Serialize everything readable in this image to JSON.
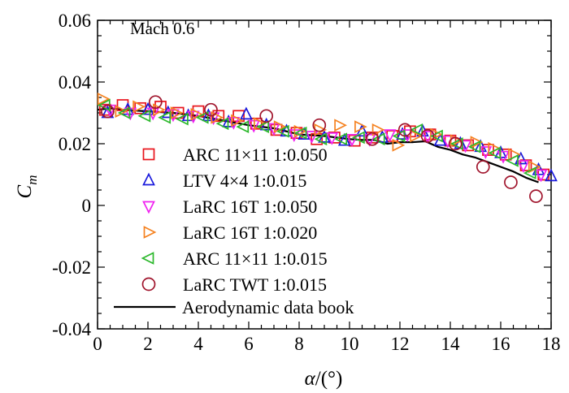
{
  "chart_data": {
    "type": "scatter",
    "title": "",
    "annotation": "Mach 0.6",
    "xlabel": {
      "symbol": "α",
      "unit": "/(°)"
    },
    "ylabel": {
      "symbol": "C",
      "subscript": "m"
    },
    "xlim": [
      0,
      18
    ],
    "ylim": [
      -0.04,
      0.06
    ],
    "xticks": [
      0,
      2,
      4,
      6,
      8,
      10,
      12,
      14,
      16,
      18
    ],
    "yticks": [
      -0.04,
      -0.02,
      0,
      0.02,
      0.04,
      0.06
    ],
    "ytick_labels": [
      "-0.04",
      "-0.02",
      "0",
      "0.02",
      "0.04",
      "0.06"
    ],
    "grid": false,
    "legend_position": "lower-left",
    "series": [
      {
        "name": "ARC 11×11 1:0.050",
        "marker": "square",
        "color": "#e8141c",
        "points": [
          [
            0.3,
            0.031
          ],
          [
            1.0,
            0.0325
          ],
          [
            1.7,
            0.0315
          ],
          [
            2.5,
            0.032
          ],
          [
            3.2,
            0.03
          ],
          [
            4.0,
            0.0305
          ],
          [
            4.8,
            0.029
          ],
          [
            5.6,
            0.029
          ],
          [
            6.3,
            0.0265
          ],
          [
            7.1,
            0.0245
          ],
          [
            7.9,
            0.0235
          ],
          [
            8.7,
            0.0215
          ],
          [
            9.4,
            0.022
          ],
          [
            10.2,
            0.021
          ],
          [
            10.9,
            0.022
          ],
          [
            11.7,
            0.0225
          ],
          [
            12.4,
            0.024
          ],
          [
            13.2,
            0.023
          ],
          [
            14.0,
            0.021
          ],
          [
            14.7,
            0.0195
          ],
          [
            15.5,
            0.018
          ],
          [
            16.2,
            0.0165
          ],
          [
            17.0,
            0.013
          ],
          [
            17.7,
            0.01
          ]
        ]
      },
      {
        "name": "LTV 4×4 1:0.015",
        "marker": "triangle-up",
        "color": "#1a1adc",
        "points": [
          [
            0.4,
            0.03
          ],
          [
            1.2,
            0.031
          ],
          [
            2.0,
            0.031
          ],
          [
            2.8,
            0.03
          ],
          [
            3.6,
            0.029
          ],
          [
            4.4,
            0.029
          ],
          [
            5.2,
            0.027
          ],
          [
            5.9,
            0.0295
          ],
          [
            6.7,
            0.026
          ],
          [
            7.5,
            0.024
          ],
          [
            8.2,
            0.023
          ],
          [
            9.0,
            0.022
          ],
          [
            9.8,
            0.021
          ],
          [
            10.5,
            0.024
          ],
          [
            11.3,
            0.022
          ],
          [
            12.1,
            0.023
          ],
          [
            12.9,
            0.024
          ],
          [
            13.6,
            0.021
          ],
          [
            14.4,
            0.02
          ],
          [
            15.2,
            0.019
          ],
          [
            16.0,
            0.017
          ],
          [
            16.8,
            0.015
          ],
          [
            17.5,
            0.0115
          ],
          [
            18.0,
            0.0095
          ]
        ]
      },
      {
        "name": "LaRC 16T 1:0.050",
        "marker": "triangle-down",
        "color": "#f020f0",
        "points": [
          [
            0.5,
            0.031
          ],
          [
            1.3,
            0.03
          ],
          [
            2.2,
            0.03
          ],
          [
            3.0,
            0.0295
          ],
          [
            3.8,
            0.029
          ],
          [
            4.6,
            0.0285
          ],
          [
            5.4,
            0.027
          ],
          [
            6.2,
            0.026
          ],
          [
            7.0,
            0.025
          ],
          [
            7.8,
            0.023
          ],
          [
            8.5,
            0.0225
          ],
          [
            9.3,
            0.022
          ],
          [
            10.1,
            0.0215
          ],
          [
            10.8,
            0.0215
          ],
          [
            11.6,
            0.023
          ],
          [
            12.3,
            0.023
          ],
          [
            13.1,
            0.0225
          ],
          [
            13.9,
            0.021
          ],
          [
            14.6,
            0.0195
          ],
          [
            15.4,
            0.0175
          ],
          [
            16.1,
            0.016
          ],
          [
            16.9,
            0.013
          ],
          [
            17.6,
            0.01
          ]
        ]
      },
      {
        "name": "LaRC 16T 1:0.020",
        "marker": "triangle-right",
        "color": "#f58220",
        "points": [
          [
            0.2,
            0.0345
          ],
          [
            0.9,
            0.0305
          ],
          [
            1.6,
            0.032
          ],
          [
            2.4,
            0.031
          ],
          [
            3.1,
            0.03
          ],
          [
            3.9,
            0.0295
          ],
          [
            4.7,
            0.0285
          ],
          [
            5.5,
            0.0275
          ],
          [
            6.4,
            0.0265
          ],
          [
            7.2,
            0.0255
          ],
          [
            8.0,
            0.024
          ],
          [
            8.8,
            0.0245
          ],
          [
            9.6,
            0.026
          ],
          [
            10.4,
            0.0255
          ],
          [
            11.1,
            0.0245
          ],
          [
            11.9,
            0.0195
          ],
          [
            12.6,
            0.0225
          ],
          [
            13.4,
            0.023
          ],
          [
            14.2,
            0.021
          ],
          [
            15.0,
            0.0205
          ],
          [
            15.7,
            0.0185
          ],
          [
            16.5,
            0.0165
          ],
          [
            17.3,
            0.0125
          ]
        ]
      },
      {
        "name": "ARC 11×11 1:0.015",
        "marker": "triangle-left",
        "color": "#2cb82c",
        "points": [
          [
            0.3,
            0.0325
          ],
          [
            1.1,
            0.03
          ],
          [
            1.9,
            0.029
          ],
          [
            2.7,
            0.0285
          ],
          [
            3.4,
            0.028
          ],
          [
            4.2,
            0.0285
          ],
          [
            5.0,
            0.0265
          ],
          [
            5.8,
            0.0255
          ],
          [
            6.6,
            0.0255
          ],
          [
            7.4,
            0.024
          ],
          [
            8.1,
            0.0235
          ],
          [
            8.9,
            0.0215
          ],
          [
            9.7,
            0.0215
          ],
          [
            10.4,
            0.022
          ],
          [
            11.2,
            0.0215
          ],
          [
            12.0,
            0.0225
          ],
          [
            12.7,
            0.0245
          ],
          [
            13.5,
            0.0225
          ],
          [
            14.3,
            0.02
          ],
          [
            15.0,
            0.019
          ],
          [
            15.8,
            0.017
          ],
          [
            16.5,
            0.0145
          ],
          [
            17.2,
            0.0105
          ]
        ]
      },
      {
        "name": "LaRC TWT 1:0.015",
        "marker": "circle",
        "color": "#a0142c",
        "points": [
          [
            0.4,
            0.0305
          ],
          [
            2.3,
            0.0335
          ],
          [
            4.5,
            0.031
          ],
          [
            6.7,
            0.029
          ],
          [
            8.8,
            0.026
          ],
          [
            10.9,
            0.0215
          ],
          [
            12.2,
            0.0245
          ],
          [
            13.1,
            0.0225
          ],
          [
            14.2,
            0.02
          ],
          [
            15.3,
            0.0125
          ],
          [
            16.4,
            0.0075
          ],
          [
            17.4,
            0.003
          ]
        ]
      }
    ],
    "line": {
      "name": "Aerodynamic data book",
      "color": "#000000",
      "x": [
        0.0,
        0.5,
        1.0,
        2.0,
        3.0,
        4.0,
        5.0,
        6.0,
        7.0,
        8.0,
        9.0,
        10.0,
        10.5,
        11.0,
        11.5,
        12.0,
        12.5,
        13.0,
        13.5,
        14.0,
        14.5,
        15.0,
        15.5,
        16.0,
        16.5,
        17.0,
        17.5
      ],
      "y": [
        0.031,
        0.0315,
        0.031,
        0.0305,
        0.03,
        0.029,
        0.0275,
        0.026,
        0.025,
        0.023,
        0.0225,
        0.0215,
        0.0212,
        0.0212,
        0.02,
        0.0205,
        0.0205,
        0.0208,
        0.019,
        0.018,
        0.0165,
        0.0155,
        0.014,
        0.0125,
        0.011,
        0.009,
        0.0075
      ]
    }
  }
}
